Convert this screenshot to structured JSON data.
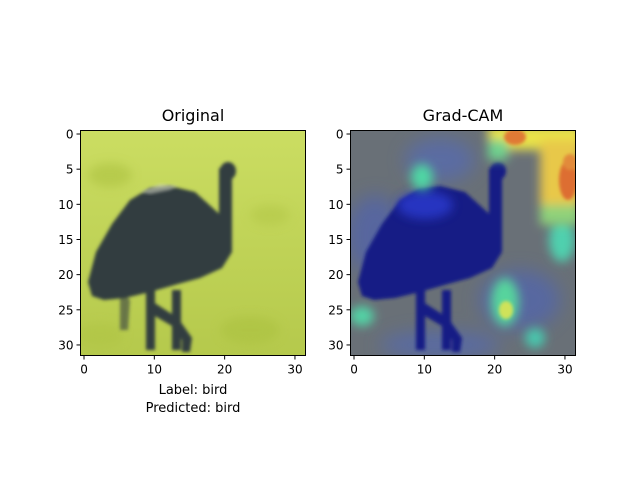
{
  "panels": [
    {
      "title": "Original",
      "xticks": [
        "0",
        "10",
        "20",
        "30"
      ],
      "yticks": [
        "0",
        "5",
        "10",
        "15",
        "20",
        "25",
        "30"
      ],
      "caption_lines": [
        "Label: bird",
        "Predicted: bird"
      ]
    },
    {
      "title": "Grad-CAM",
      "xticks": [
        "0",
        "10",
        "20",
        "30"
      ],
      "yticks": [
        "0",
        "5",
        "10",
        "15",
        "20",
        "25",
        "30"
      ],
      "caption_lines": []
    }
  ],
  "colors": {
    "grass_light": "#c6d85a",
    "grass_dark": "#a9bf3c",
    "bird_dark": "#2f3a3f",
    "bird_mid": "#3f4c4c",
    "cam_background": "#6a7076",
    "cam_bird": "#141d86",
    "cam_blue_glow": "#4c63c9",
    "cam_cyan": "#4fd8a6",
    "cam_yellow": "#f0e94a",
    "cam_orange": "#e37937",
    "cam_red": "#c9402c"
  }
}
